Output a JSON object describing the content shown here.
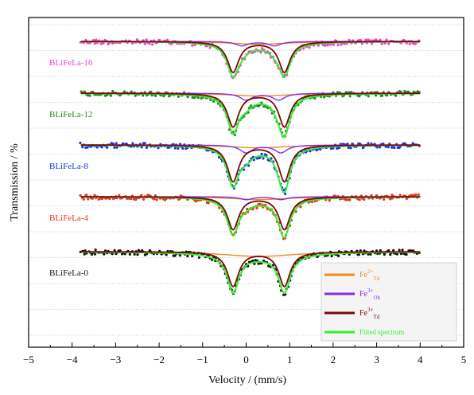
{
  "chart_data": {
    "type": "scatter",
    "xlabel": "Velocity / (mm/s)",
    "ylabel": "Transmission / %",
    "xlim": [
      -5,
      5
    ],
    "xticks": [
      -5,
      -4,
      -3,
      -2,
      -1,
      0,
      1,
      2,
      3,
      4,
      5
    ],
    "grid": true,
    "legend_position": "bottom-right",
    "legend": [
      {
        "key": "fe2_td",
        "base": "Fe",
        "sup": "2+",
        "sub": "Td",
        "color": "#f28a1e"
      },
      {
        "key": "fe3_oh",
        "base": "Fe",
        "sup": "3+",
        "sub": "Oh",
        "color": "#8a2be2"
      },
      {
        "key": "fe3_td",
        "base": "Fe",
        "sup": "3+",
        "sub": "Td",
        "color": "#7a0a0a"
      },
      {
        "key": "fit",
        "base": "Fitted spectrum",
        "sup": "",
        "sub": "",
        "color": "#33ee33"
      }
    ],
    "samples": [
      {
        "name": "BLiFeLa-16",
        "color": "#ee44cc",
        "fe3_td": {
          "centers": [
            -0.3,
            0.88
          ],
          "depth": 0.64,
          "width": 0.32
        },
        "fe3_oh": {
          "centers": [
            -0.1,
            0.65
          ],
          "depth": 0.09,
          "width": 0.35
        },
        "fe2_td": {
          "centers": [
            0.3
          ],
          "depth": 0.06,
          "width": 1.6
        },
        "fit_depth": 0.74
      },
      {
        "name": "BLiFeLa-12",
        "color": "#1e8c1e",
        "fe3_td": {
          "centers": [
            -0.3,
            0.88
          ],
          "depth": 0.7,
          "width": 0.32
        },
        "fe3_oh": {
          "centers": [
            0.0,
            0.75
          ],
          "depth": 0.14,
          "width": 0.35
        },
        "fe2_td": {
          "centers": [
            0.3
          ],
          "depth": 0.06,
          "width": 1.6
        },
        "fit_depth": 0.86
      },
      {
        "name": "BLiFeLa-8",
        "color": "#1a33dd",
        "fe3_td": {
          "centers": [
            -0.3,
            0.88
          ],
          "depth": 0.76,
          "width": 0.32
        },
        "fe3_oh": {
          "centers": [
            0.0,
            0.8
          ],
          "depth": 0.16,
          "width": 0.35
        },
        "fe2_td": {
          "centers": [
            0.3
          ],
          "depth": 0.06,
          "width": 1.6
        },
        "fit_depth": 0.9
      },
      {
        "name": "BLiFeLa-4",
        "color": "#e8361e",
        "fe3_td": {
          "centers": [
            -0.3,
            0.88
          ],
          "depth": 0.68,
          "width": 0.32
        },
        "fe3_oh": {
          "centers": [
            0.0,
            0.8
          ],
          "depth": 0.06,
          "width": 0.35
        },
        "fe2_td": {
          "centers": [
            0.3
          ],
          "depth": 0.06,
          "width": 1.6
        },
        "fit_depth": 0.82
      },
      {
        "name": "BLiFeLa-0",
        "color": "#111111",
        "fe3_td": {
          "centers": [
            -0.3,
            0.88
          ],
          "depth": 0.72,
          "width": 0.32
        },
        "fe3_oh": {
          "centers": [
            0.0,
            0.8
          ],
          "depth": 0.0,
          "width": 0.35
        },
        "fe2_td": {
          "centers": [
            0.3
          ],
          "depth": 0.1,
          "width": 2.0
        },
        "fit_depth": 0.86
      }
    ]
  }
}
